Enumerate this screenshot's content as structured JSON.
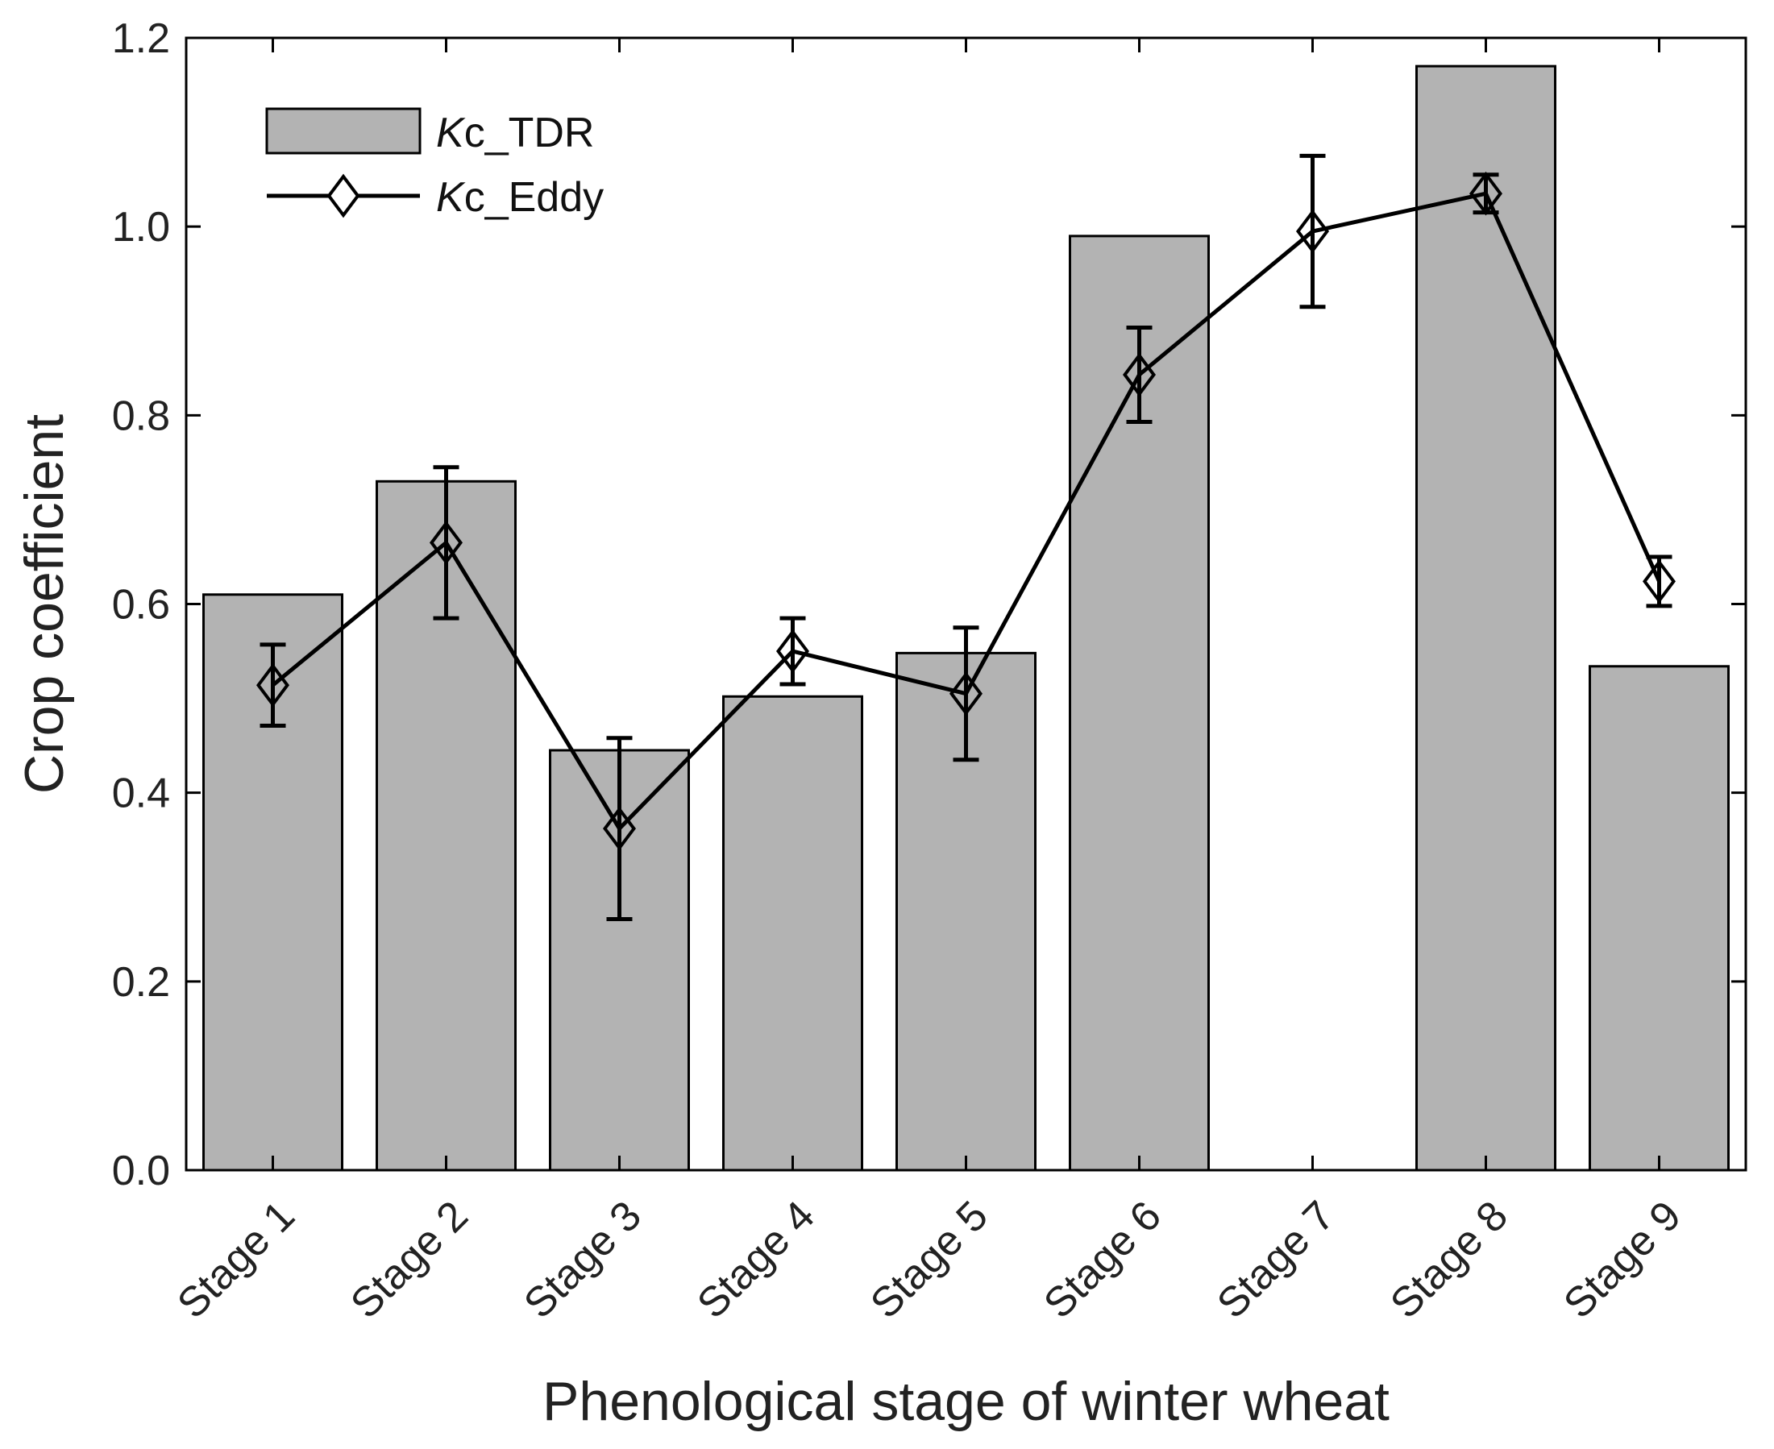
{
  "chart_data": {
    "type": "bar",
    "title": "",
    "xlabel": "Phenological stage of winter wheat",
    "ylabel": "Crop coefficient",
    "categories": [
      "Stage 1",
      "Stage 2",
      "Stage 3",
      "Stage 4",
      "Stage 5",
      "Stage 6",
      "Stage 7",
      "Stage 8",
      "Stage 9"
    ],
    "ylim": [
      0,
      1.2
    ],
    "yticks": [
      "0.0",
      "0.2",
      "0.4",
      "0.6",
      "0.8",
      "1.0",
      "1.2"
    ],
    "grid": false,
    "legend_position": "top-left",
    "series": [
      {
        "name": "Kc_TDR",
        "legend_italic": "K",
        "legend_rest": "c_TDR",
        "kind": "bar",
        "color": "#b3b3b3",
        "values": [
          0.61,
          0.73,
          0.445,
          0.502,
          0.548,
          0.99,
          null,
          1.17,
          0.534
        ]
      },
      {
        "name": "Kc_Eddy",
        "legend_italic": "K",
        "legend_rest": "c_Eddy",
        "kind": "line",
        "marker": "diamond",
        "color": "#000000",
        "values": [
          0.514,
          0.665,
          0.362,
          0.55,
          0.505,
          0.843,
          0.995,
          1.035,
          0.624
        ],
        "error": [
          0.043,
          0.08,
          0.096,
          0.035,
          0.07,
          0.05,
          0.08,
          0.02,
          0.026
        ]
      }
    ]
  }
}
